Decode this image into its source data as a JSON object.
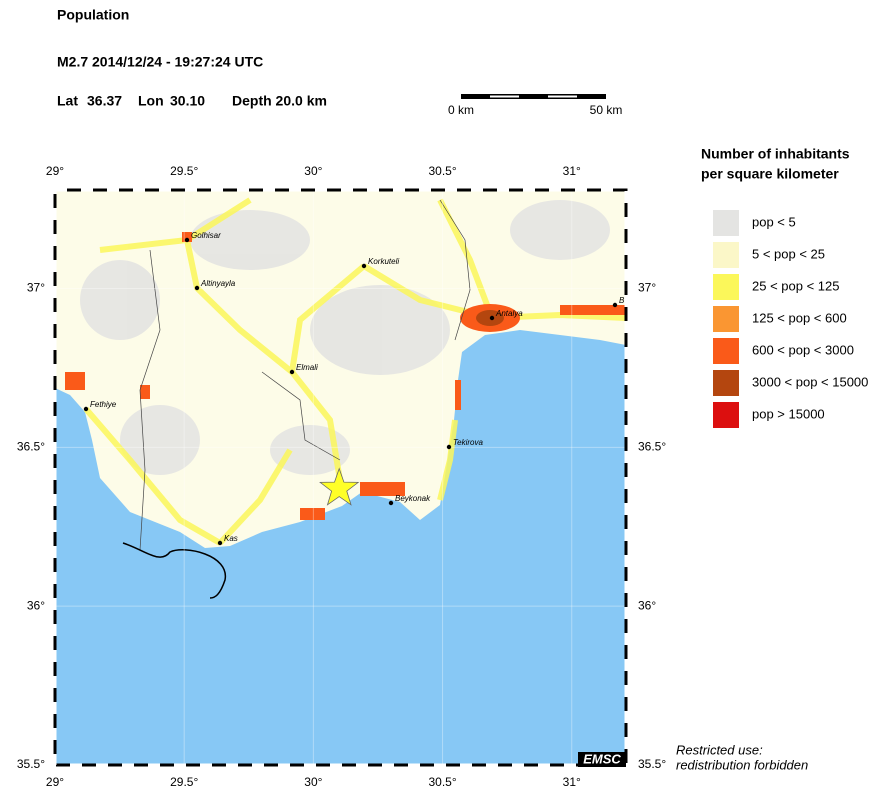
{
  "header": {
    "title": "Population",
    "event": "M2.7  2014/12/24 - 19:27:24 UTC",
    "lat": {
      "label": "Lat",
      "value": 36.37
    },
    "lon": {
      "label": "Lon",
      "value": 30.1,
      "value_label": "30.10"
    },
    "depth": "Depth  20.0 km"
  },
  "scale_bar": {
    "start": "0 km",
    "end": "50 km"
  },
  "map": {
    "xlim": [
      29,
      31.21
    ],
    "ylim": [
      35.5,
      37.31
    ],
    "xticks": [
      {
        "value": 29,
        "label": "29°"
      },
      {
        "value": 29.5,
        "label": "29.5°"
      },
      {
        "value": 30,
        "label": "30°"
      },
      {
        "value": 30.5,
        "label": "30.5°"
      },
      {
        "value": 31,
        "label": "31°"
      }
    ],
    "yticks": [
      {
        "value": 35.5,
        "label": "35.5°"
      },
      {
        "value": 36,
        "label": "36°"
      },
      {
        "value": 36.5,
        "label": "36.5°"
      },
      {
        "value": 37,
        "label": "37°"
      }
    ],
    "cities": [
      "Golhisar",
      "Altinyayla",
      "Korkuteli",
      "Antalya",
      "Elmali",
      "Fethiye",
      "Tekirova",
      "Beykonak",
      "Kas",
      "B"
    ],
    "badge": "EMSC"
  },
  "legend": {
    "title": [
      "Number of inhabitants",
      "per square kilometer"
    ],
    "items": [
      {
        "name": "pop < 5",
        "color": "#e4e4e2"
      },
      {
        "name": "5 < pop < 25",
        "color": "#fbf7c8"
      },
      {
        "name": "25 < pop < 125",
        "color": "#fbf75a"
      },
      {
        "name": "125 < pop < 600",
        "color": "#fa9632"
      },
      {
        "name": "600 < pop < 3000",
        "color": "#fa5a19"
      },
      {
        "name": "3000 < pop < 15000",
        "color": "#b4460f"
      },
      {
        "name": "pop > 15000",
        "color": "#dc0f0f"
      }
    ]
  },
  "notice": [
    "Restricted use:",
    "redistribution forbidden"
  ]
}
